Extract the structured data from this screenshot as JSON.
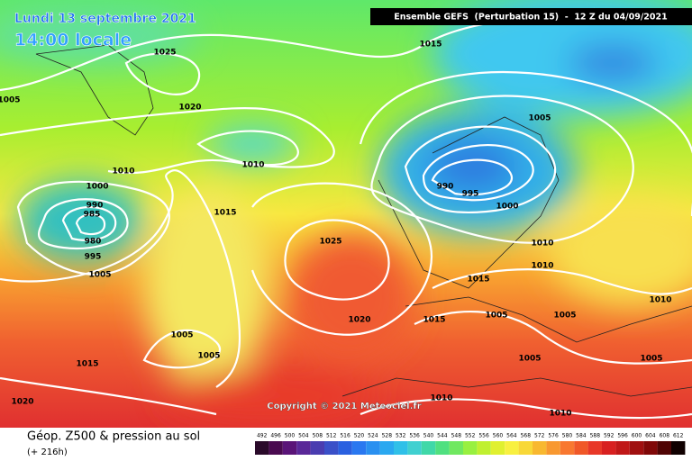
{
  "header": {
    "date": "Lundi 13 septembre 2021",
    "time": "14:00 locale",
    "model": "Ensemble GEFS  (Perturbation 15)  -  12 Z du 04/09/2021"
  },
  "isobar_labels": [
    "1015",
    "1025",
    "1005",
    "1020",
    "1005",
    "1010",
    "1010",
    "1000",
    "990",
    "995",
    "990",
    "985",
    "980",
    "1000",
    "1015",
    "1025",
    "995",
    "1010",
    "1010",
    "1005",
    "1015",
    "1010",
    "1005",
    "1005",
    "1020",
    "1015",
    "1005",
    "1005",
    "1005",
    "1005",
    "1015",
    "1020",
    "1010",
    "1010"
  ],
  "copyright": "Copyright © 2021 Meteociel.fr",
  "footer": {
    "title": "Géop. Z500 & pression au sol",
    "lead": "(+ 216h)"
  },
  "scale": {
    "labels": [
      "492",
      "496",
      "500",
      "504",
      "508",
      "512",
      "516",
      "520",
      "524",
      "528",
      "532",
      "536",
      "540",
      "544",
      "548",
      "552",
      "556",
      "560",
      "564",
      "568",
      "572",
      "576",
      "580",
      "584",
      "588",
      "592",
      "596",
      "600",
      "604",
      "608",
      "612"
    ]
  }
}
